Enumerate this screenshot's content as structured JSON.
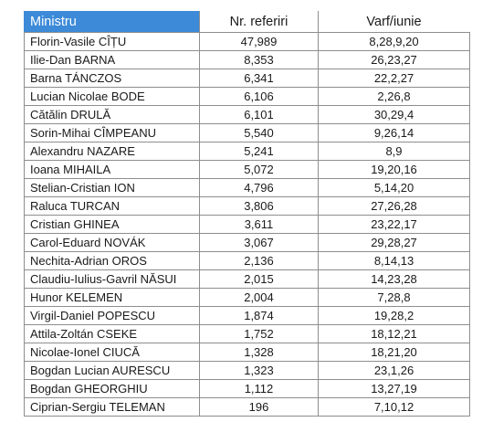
{
  "table": {
    "headers": {
      "minister": "Ministru",
      "referrals": "Nr. referiri",
      "peak": "Varf/iunie"
    },
    "rows": [
      {
        "name": "Florin-Vasile CÎȚU",
        "referrals": "47,989",
        "peak": "8,28,9,20"
      },
      {
        "name": "Ilie-Dan BARNA",
        "referrals": "8,353",
        "peak": "26,23,27"
      },
      {
        "name": "Barna TÁNCZOS",
        "referrals": "6,341",
        "peak": "22,2,27"
      },
      {
        "name": "Lucian Nicolae BODE",
        "referrals": "6,106",
        "peak": "2,26,8"
      },
      {
        "name": "Cătălin DRULĂ",
        "referrals": "6,101",
        "peak": "30,29,4"
      },
      {
        "name": "Sorin-Mihai CÎMPEANU",
        "referrals": "5,540",
        "peak": "9,26,14"
      },
      {
        "name": "Alexandru NAZARE",
        "referrals": "5,241",
        "peak": "8,9"
      },
      {
        "name": "Ioana MIHAILA",
        "referrals": "5,072",
        "peak": "19,20,16"
      },
      {
        "name": "Stelian-Cristian ION",
        "referrals": "4,796",
        "peak": "5,14,20"
      },
      {
        "name": "Raluca TURCAN",
        "referrals": "3,806",
        "peak": "27,26,28"
      },
      {
        "name": "Cristian GHINEA",
        "referrals": "3,611",
        "peak": "23,22,17"
      },
      {
        "name": "Carol-Eduard NOVÁK",
        "referrals": "3,067",
        "peak": "29,28,27"
      },
      {
        "name": "Nechita-Adrian OROS",
        "referrals": "2,136",
        "peak": "8,14,13"
      },
      {
        "name": "Claudiu-Iulius-Gavril NĂSUI",
        "referrals": "2,015",
        "peak": "14,23,28"
      },
      {
        "name": "Hunor KELEMEN",
        "referrals": "2,004",
        "peak": "7,28,8"
      },
      {
        "name": "Virgil-Daniel POPESCU",
        "referrals": "1,874",
        "peak": "19,28,2"
      },
      {
        "name": "Attila-Zoltán CSEKE",
        "referrals": "1,752",
        "peak": "18,12,21"
      },
      {
        "name": "Nicolae-Ionel CIUCĂ",
        "referrals": "1,328",
        "peak": "18,21,20"
      },
      {
        "name": "Bogdan Lucian AURESCU",
        "referrals": "1,323",
        "peak": "23,1,26"
      },
      {
        "name": "Bogdan GHEORGHIU",
        "referrals": "1,112",
        "peak": "13,27,19"
      },
      {
        "name": "Ciprian-Sergiu TELEMAN",
        "referrals": "196",
        "peak": "7,10,12"
      }
    ]
  },
  "colors": {
    "header_accent": "#3c8ad8",
    "grid_line": "#8e8e8e"
  }
}
